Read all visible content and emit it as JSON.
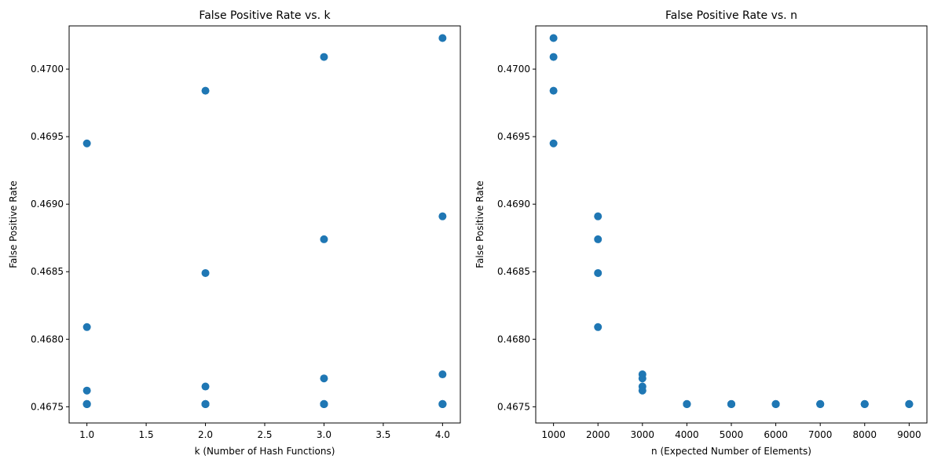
{
  "chart_data": [
    {
      "type": "scatter",
      "title": "False Positive Rate vs. k",
      "xlabel": "k (Number of Hash Functions)",
      "ylabel": "False Positive Rate",
      "xlim": [
        0.85,
        4.15
      ],
      "ylim": [
        0.46738,
        0.47032
      ],
      "xticks": [
        1.0,
        1.5,
        2.0,
        2.5,
        3.0,
        3.5,
        4.0
      ],
      "xtick_labels": [
        "1.0",
        "1.5",
        "2.0",
        "2.5",
        "3.0",
        "3.5",
        "4.0"
      ],
      "yticks": [
        0.4675,
        0.468,
        0.4685,
        0.469,
        0.4695,
        0.47
      ],
      "ytick_labels": [
        "0.4675",
        "0.4680",
        "0.4685",
        "0.4690",
        "0.4695",
        "0.4700"
      ],
      "grid": false,
      "color": "#1f77b4",
      "points": [
        [
          1,
          0.46945
        ],
        [
          1,
          0.46809
        ],
        [
          1,
          0.46762
        ],
        [
          1,
          0.46752
        ],
        [
          1,
          0.46752
        ],
        [
          1,
          0.46752
        ],
        [
          1,
          0.46752
        ],
        [
          1,
          0.46752
        ],
        [
          1,
          0.46752
        ],
        [
          2,
          0.46984
        ],
        [
          2,
          0.46849
        ],
        [
          2,
          0.46765
        ],
        [
          2,
          0.46752
        ],
        [
          2,
          0.46752
        ],
        [
          2,
          0.46752
        ],
        [
          2,
          0.46752
        ],
        [
          2,
          0.46752
        ],
        [
          2,
          0.46752
        ],
        [
          3,
          0.47009
        ],
        [
          3,
          0.46874
        ],
        [
          3,
          0.46771
        ],
        [
          3,
          0.46752
        ],
        [
          3,
          0.46752
        ],
        [
          3,
          0.46752
        ],
        [
          3,
          0.46752
        ],
        [
          3,
          0.46752
        ],
        [
          3,
          0.46752
        ],
        [
          4,
          0.47023
        ],
        [
          4,
          0.46891
        ],
        [
          4,
          0.46774
        ],
        [
          4,
          0.46752
        ],
        [
          4,
          0.46752
        ],
        [
          4,
          0.46752
        ],
        [
          4,
          0.46752
        ],
        [
          4,
          0.46752
        ],
        [
          4,
          0.46752
        ]
      ]
    },
    {
      "type": "scatter",
      "title": "False Positive Rate vs. n",
      "xlabel": "n (Expected Number of Elements)",
      "ylabel": "False Positive Rate",
      "xlim": [
        600,
        9400
      ],
      "ylim": [
        0.46738,
        0.47032
      ],
      "xticks": [
        1000,
        2000,
        3000,
        4000,
        5000,
        6000,
        7000,
        8000,
        9000
      ],
      "xtick_labels": [
        "1000",
        "2000",
        "3000",
        "4000",
        "5000",
        "6000",
        "7000",
        "8000",
        "9000"
      ],
      "yticks": [
        0.4675,
        0.468,
        0.4685,
        0.469,
        0.4695,
        0.47
      ],
      "ytick_labels": [
        "0.4675",
        "0.4680",
        "0.4685",
        "0.4690",
        "0.4695",
        "0.4700"
      ],
      "grid": false,
      "color": "#1f77b4",
      "points": [
        [
          1000,
          0.47023
        ],
        [
          1000,
          0.47009
        ],
        [
          1000,
          0.46984
        ],
        [
          1000,
          0.46945
        ],
        [
          2000,
          0.46891
        ],
        [
          2000,
          0.46874
        ],
        [
          2000,
          0.46849
        ],
        [
          2000,
          0.46809
        ],
        [
          3000,
          0.46774
        ],
        [
          3000,
          0.46771
        ],
        [
          3000,
          0.46765
        ],
        [
          3000,
          0.46762
        ],
        [
          4000,
          0.46752
        ],
        [
          4000,
          0.46752
        ],
        [
          4000,
          0.46752
        ],
        [
          4000,
          0.46752
        ],
        [
          5000,
          0.46752
        ],
        [
          5000,
          0.46752
        ],
        [
          5000,
          0.46752
        ],
        [
          5000,
          0.46752
        ],
        [
          6000,
          0.46752
        ],
        [
          6000,
          0.46752
        ],
        [
          6000,
          0.46752
        ],
        [
          6000,
          0.46752
        ],
        [
          7000,
          0.46752
        ],
        [
          7000,
          0.46752
        ],
        [
          7000,
          0.46752
        ],
        [
          7000,
          0.46752
        ],
        [
          8000,
          0.46752
        ],
        [
          8000,
          0.46752
        ],
        [
          8000,
          0.46752
        ],
        [
          8000,
          0.46752
        ],
        [
          9000,
          0.46752
        ],
        [
          9000,
          0.46752
        ],
        [
          9000,
          0.46752
        ],
        [
          9000,
          0.46752
        ]
      ]
    }
  ]
}
